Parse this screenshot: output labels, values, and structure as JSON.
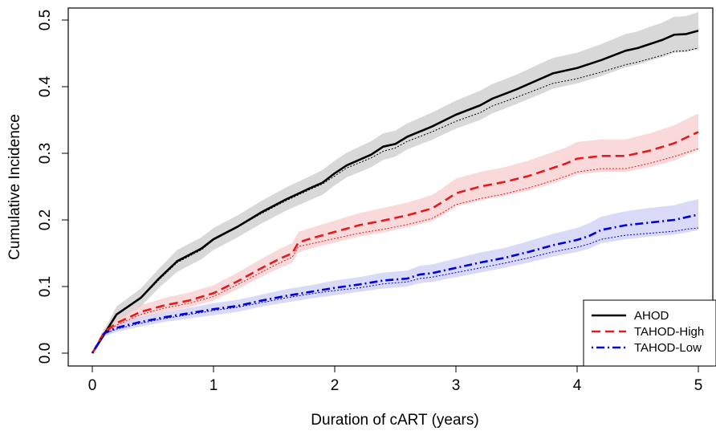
{
  "chart_data": {
    "type": "line",
    "title": "",
    "xlabel": "Duration of cART (years)",
    "ylabel": "Cumulative Incidence",
    "xlim": [
      0,
      5
    ],
    "ylim": [
      0,
      0.5
    ],
    "x_ticks": [
      0,
      1,
      2,
      3,
      4,
      5
    ],
    "y_ticks": [
      0.0,
      0.1,
      0.2,
      0.3,
      0.4,
      0.5
    ],
    "x_tick_labels": [
      "0",
      "1",
      "2",
      "3",
      "4",
      "5"
    ],
    "y_tick_labels": [
      "0.0",
      "0.1",
      "0.2",
      "0.3",
      "0.4",
      "0.5"
    ],
    "grid": false,
    "legend_position": "bottom-right",
    "series": [
      {
        "name": "AHOD",
        "color": "#000000",
        "band_color": "#c8c8c8",
        "line_style": "solid",
        "x": [
          0,
          0.2,
          0.4,
          0.55,
          0.7,
          0.9,
          1.0,
          1.2,
          1.4,
          1.6,
          1.8,
          1.9,
          2.0,
          2.1,
          2.3,
          2.4,
          2.5,
          2.6,
          2.8,
          3.0,
          3.2,
          3.3,
          3.5,
          3.7,
          3.8,
          4.0,
          4.2,
          4.4,
          4.5,
          4.6,
          4.7,
          4.8,
          4.9,
          5.0
        ],
        "y": [
          0,
          0.058,
          0.083,
          0.112,
          0.138,
          0.157,
          0.171,
          0.19,
          0.212,
          0.231,
          0.248,
          0.256,
          0.27,
          0.282,
          0.298,
          0.31,
          0.314,
          0.325,
          0.34,
          0.358,
          0.372,
          0.382,
          0.396,
          0.412,
          0.42,
          0.428,
          0.44,
          0.454,
          0.458,
          0.464,
          0.47,
          0.478,
          0.479,
          0.484
        ],
        "ci_lower": [
          0,
          0.048,
          0.07,
          0.098,
          0.122,
          0.141,
          0.155,
          0.174,
          0.195,
          0.214,
          0.23,
          0.238,
          0.252,
          0.264,
          0.279,
          0.29,
          0.295,
          0.306,
          0.32,
          0.337,
          0.35,
          0.36,
          0.374,
          0.389,
          0.397,
          0.405,
          0.416,
          0.429,
          0.433,
          0.439,
          0.444,
          0.451,
          0.452,
          0.456
        ],
        "ci_upper": [
          0,
          0.07,
          0.097,
          0.127,
          0.155,
          0.174,
          0.188,
          0.207,
          0.229,
          0.249,
          0.266,
          0.275,
          0.289,
          0.301,
          0.318,
          0.33,
          0.334,
          0.345,
          0.361,
          0.379,
          0.394,
          0.404,
          0.418,
          0.435,
          0.443,
          0.451,
          0.464,
          0.479,
          0.483,
          0.49,
          0.496,
          0.505,
          0.506,
          0.512
        ],
        "reference": [
          0,
          0.058,
          0.082,
          0.11,
          0.136,
          0.155,
          0.17,
          0.189,
          0.21,
          0.229,
          0.246,
          0.254,
          0.266,
          0.278,
          0.293,
          0.303,
          0.308,
          0.318,
          0.332,
          0.348,
          0.361,
          0.371,
          0.384,
          0.398,
          0.405,
          0.412,
          0.422,
          0.433,
          0.437,
          0.442,
          0.447,
          0.453,
          0.454,
          0.458
        ]
      },
      {
        "name": "TAHOD-High",
        "color": "#e41a1c",
        "band_color": "#f7c9c9",
        "line_style": "dashed",
        "x": [
          0,
          0.1,
          0.2,
          0.4,
          0.6,
          0.8,
          1.0,
          1.2,
          1.4,
          1.55,
          1.65,
          1.7,
          1.8,
          2.0,
          2.2,
          2.4,
          2.6,
          2.8,
          2.9,
          3.0,
          3.2,
          3.4,
          3.6,
          3.8,
          3.9,
          4.0,
          4.2,
          4.4,
          4.6,
          4.8,
          5.0
        ],
        "y": [
          0,
          0.032,
          0.045,
          0.062,
          0.072,
          0.079,
          0.09,
          0.108,
          0.128,
          0.142,
          0.15,
          0.166,
          0.172,
          0.182,
          0.192,
          0.199,
          0.207,
          0.217,
          0.228,
          0.24,
          0.25,
          0.257,
          0.266,
          0.278,
          0.284,
          0.292,
          0.296,
          0.296,
          0.304,
          0.315,
          0.332
        ],
        "ci_lower": [
          0,
          0.026,
          0.038,
          0.053,
          0.062,
          0.069,
          0.079,
          0.096,
          0.115,
          0.128,
          0.136,
          0.151,
          0.157,
          0.166,
          0.175,
          0.181,
          0.189,
          0.198,
          0.208,
          0.22,
          0.229,
          0.236,
          0.244,
          0.255,
          0.261,
          0.268,
          0.272,
          0.272,
          0.279,
          0.289,
          0.305
        ],
        "ci_upper": [
          0,
          0.038,
          0.053,
          0.072,
          0.083,
          0.091,
          0.102,
          0.121,
          0.142,
          0.157,
          0.165,
          0.182,
          0.188,
          0.199,
          0.21,
          0.218,
          0.226,
          0.237,
          0.249,
          0.262,
          0.272,
          0.279,
          0.289,
          0.302,
          0.308,
          0.317,
          0.321,
          0.321,
          0.33,
          0.342,
          0.36
        ],
        "reference": [
          0,
          0.03,
          0.042,
          0.058,
          0.068,
          0.075,
          0.085,
          0.103,
          0.122,
          0.136,
          0.144,
          0.16,
          0.164,
          0.172,
          0.18,
          0.186,
          0.193,
          0.202,
          0.212,
          0.223,
          0.232,
          0.239,
          0.248,
          0.259,
          0.265,
          0.272,
          0.277,
          0.277,
          0.285,
          0.295,
          0.307
        ]
      },
      {
        "name": "TAHOD-Low",
        "color": "#0000e0",
        "band_color": "#c9c9f5",
        "line_style": "dotdash",
        "x": [
          0,
          0.1,
          0.2,
          0.4,
          0.6,
          0.8,
          1.0,
          1.2,
          1.4,
          1.6,
          1.8,
          2.0,
          2.2,
          2.4,
          2.6,
          2.7,
          2.8,
          3.0,
          3.2,
          3.4,
          3.6,
          3.8,
          4.0,
          4.1,
          4.2,
          4.4,
          4.6,
          4.8,
          4.9,
          5.0
        ],
        "y": [
          0,
          0.03,
          0.038,
          0.047,
          0.054,
          0.06,
          0.066,
          0.071,
          0.079,
          0.086,
          0.092,
          0.098,
          0.103,
          0.109,
          0.112,
          0.118,
          0.12,
          0.128,
          0.136,
          0.143,
          0.152,
          0.162,
          0.17,
          0.176,
          0.185,
          0.192,
          0.196,
          0.2,
          0.204,
          0.208
        ],
        "ci_lower": [
          0,
          0.025,
          0.032,
          0.04,
          0.047,
          0.052,
          0.057,
          0.062,
          0.07,
          0.076,
          0.082,
          0.087,
          0.092,
          0.097,
          0.1,
          0.105,
          0.107,
          0.114,
          0.121,
          0.128,
          0.136,
          0.145,
          0.152,
          0.157,
          0.165,
          0.171,
          0.175,
          0.178,
          0.181,
          0.185
        ],
        "ci_upper": [
          0,
          0.035,
          0.044,
          0.054,
          0.062,
          0.068,
          0.075,
          0.08,
          0.088,
          0.096,
          0.102,
          0.109,
          0.114,
          0.121,
          0.124,
          0.131,
          0.133,
          0.142,
          0.151,
          0.158,
          0.168,
          0.179,
          0.188,
          0.195,
          0.205,
          0.213,
          0.218,
          0.222,
          0.227,
          0.231
        ],
        "reference": [
          0,
          0.029,
          0.036,
          0.045,
          0.052,
          0.058,
          0.064,
          0.069,
          0.076,
          0.083,
          0.089,
          0.094,
          0.098,
          0.104,
          0.107,
          0.112,
          0.114,
          0.121,
          0.128,
          0.135,
          0.143,
          0.152,
          0.159,
          0.164,
          0.171,
          0.177,
          0.18,
          0.183,
          0.186,
          0.188
        ]
      }
    ]
  }
}
